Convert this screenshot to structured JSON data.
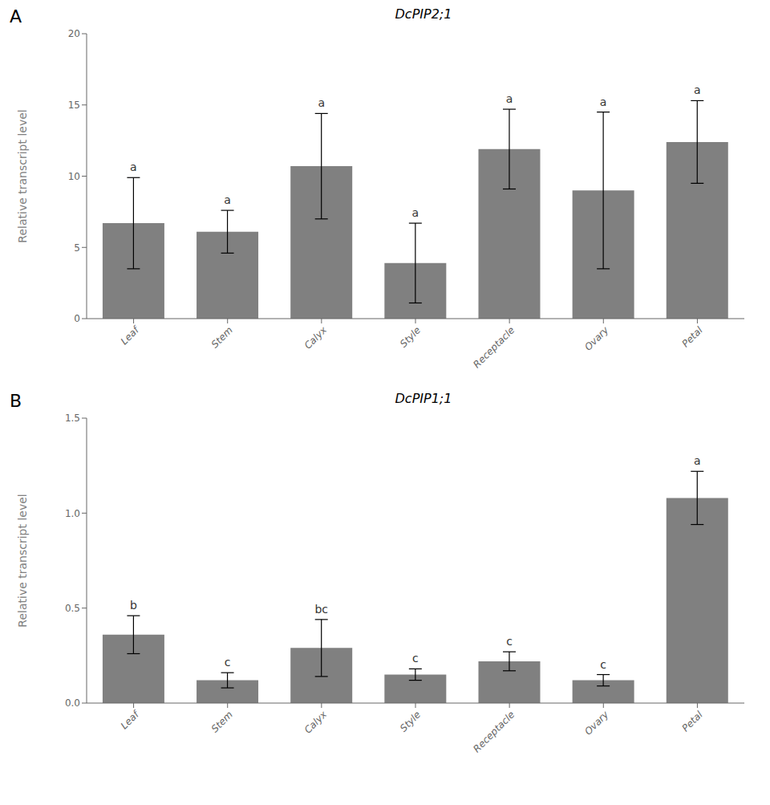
{
  "chart_data": [
    {
      "type": "bar",
      "title": "DcPIP2;1",
      "annotations": [
        "A"
      ],
      "ylabel": "Relative transcript level",
      "categories": [
        "Leaf",
        "Stem",
        "Calyx",
        "Style",
        "Receptacle",
        "Ovary",
        "Petal"
      ],
      "values": [
        6.7,
        6.1,
        10.7,
        3.9,
        11.9,
        9.0,
        12.4
      ],
      "errors": [
        3.2,
        1.5,
        3.7,
        2.8,
        2.8,
        5.5,
        2.9
      ],
      "letters": [
        "a",
        "a",
        "a",
        "a",
        "a",
        "a",
        "a"
      ],
      "color": "#808080",
      "ylim": [
        0,
        20
      ],
      "yticks": [
        0,
        5,
        10,
        15,
        20
      ],
      "grid": false
    },
    {
      "type": "bar",
      "title": "DcPIP1;1",
      "annotations": [
        "B"
      ],
      "ylabel": "Relative transcript level",
      "categories": [
        "Leaf",
        "Stem",
        "Calyx",
        "Style",
        "Receptacle",
        "Ovary",
        "Petal"
      ],
      "values": [
        0.36,
        0.12,
        0.29,
        0.15,
        0.22,
        0.12,
        1.08
      ],
      "errors": [
        0.1,
        0.04,
        0.15,
        0.03,
        0.05,
        0.03,
        0.14
      ],
      "letters": [
        "b",
        "c",
        "bc",
        "c",
        "c",
        "c",
        "a"
      ],
      "color": "#808080",
      "ylim": [
        0,
        1.5
      ],
      "yticks": [
        {
          "value": 0,
          "label": "0.0"
        },
        0.5,
        {
          "value": 1,
          "label": "1.0"
        },
        1.5
      ],
      "grid": false
    }
  ]
}
